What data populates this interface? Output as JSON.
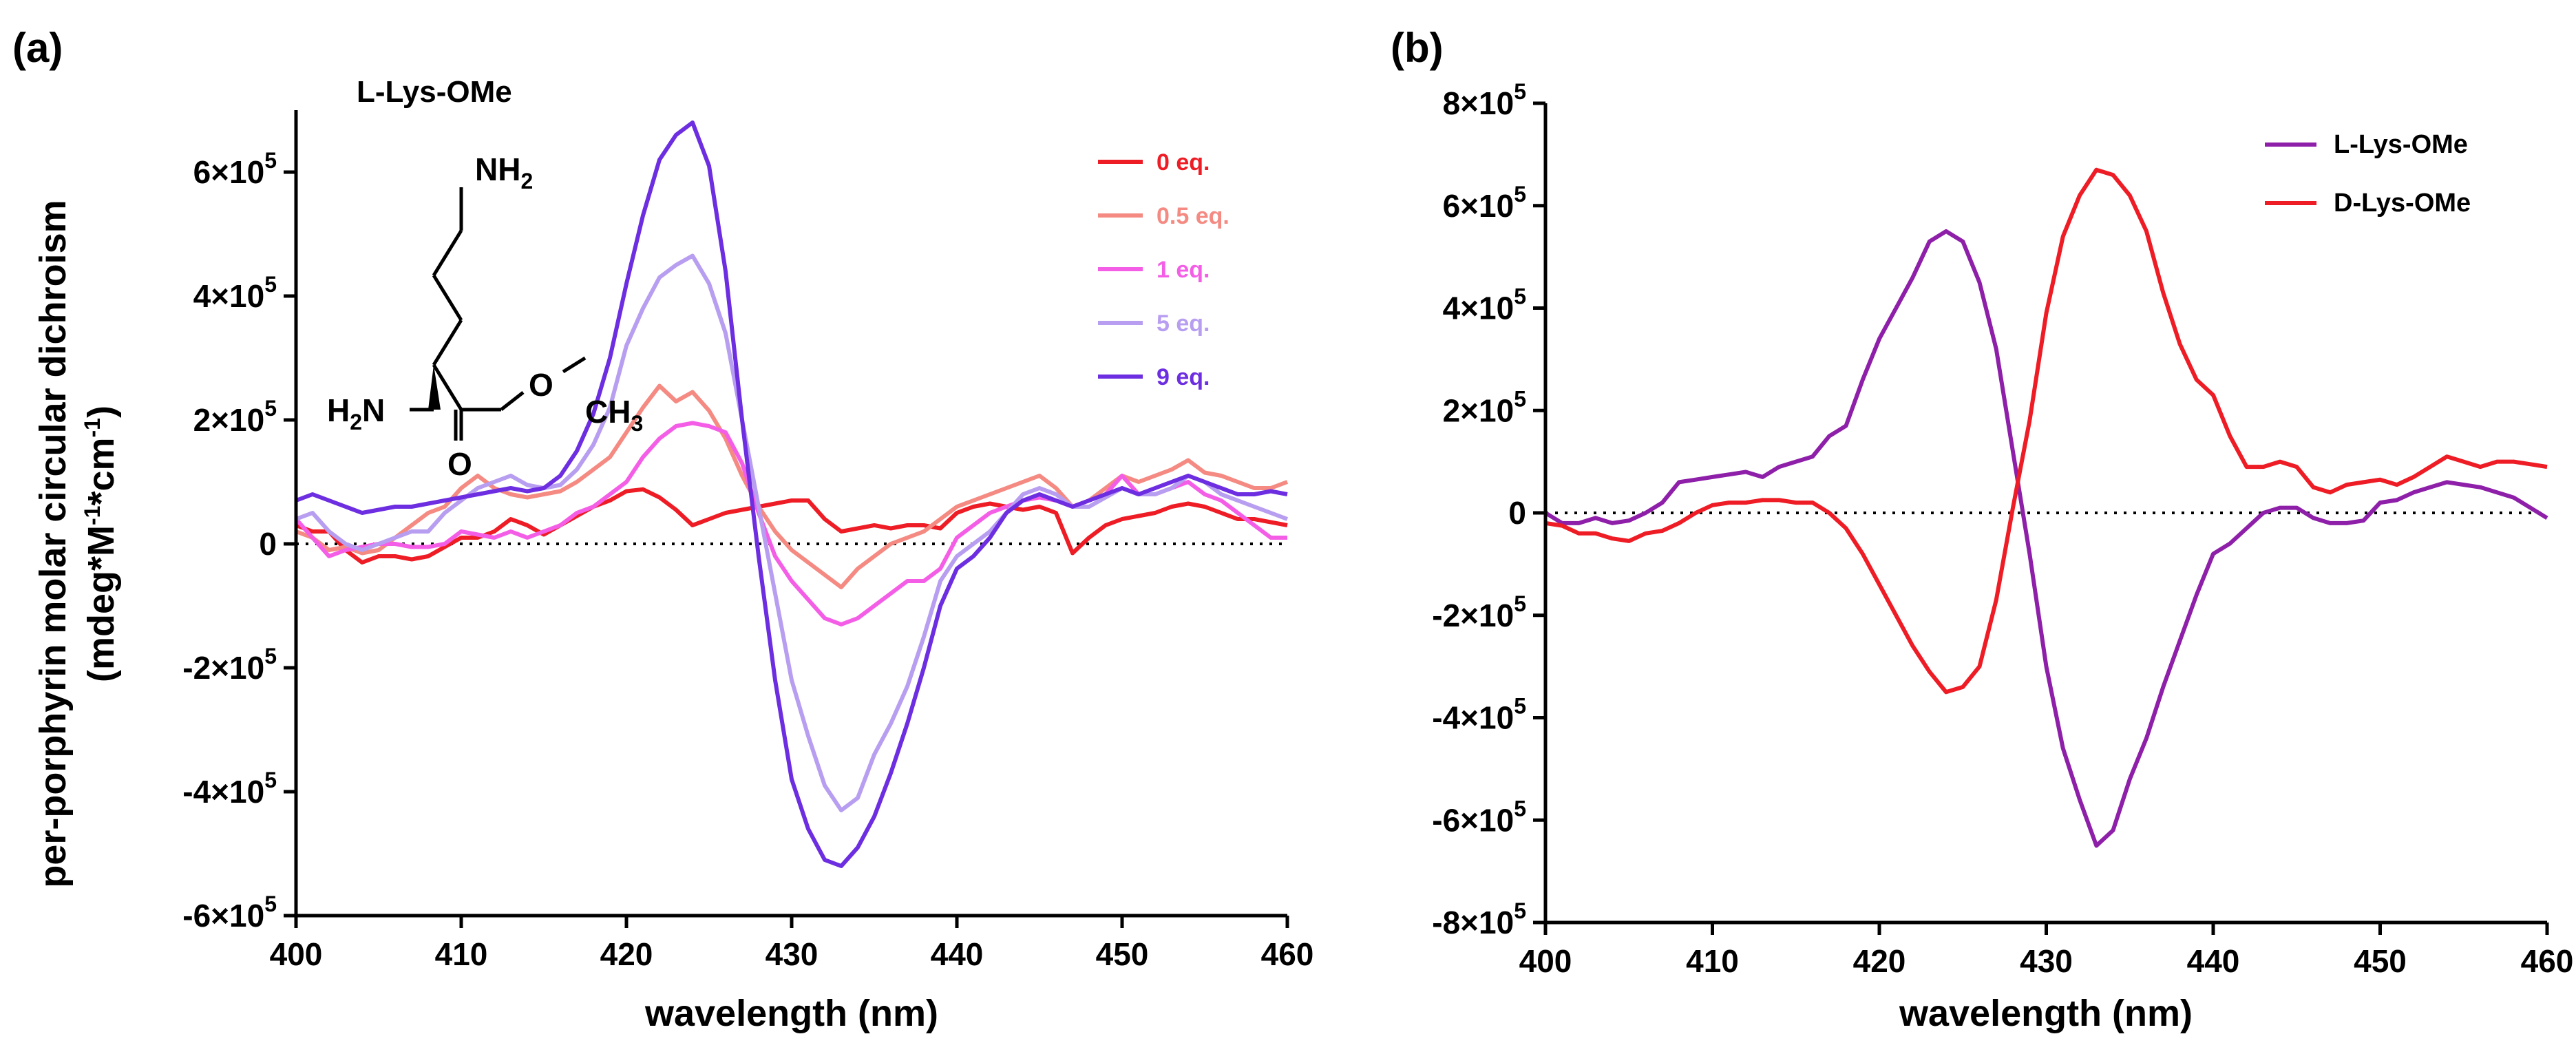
{
  "chart_data": [
    {
      "panel": "(a)",
      "type": "line",
      "title": "",
      "xlabel": "wavelength (nm)",
      "ylabel_line1": "per-porphyrin molar circular dichroism",
      "ylabel_line2": "(mdeg*M-1*cm-1)",
      "xlim": [
        400,
        460
      ],
      "ylim": [
        -600000,
        700000
      ],
      "xticks": [
        400,
        410,
        420,
        430,
        440,
        450,
        460
      ],
      "yticks": [
        -600000,
        -400000,
        -200000,
        0,
        200000,
        400000,
        600000
      ],
      "ytick_labels": [
        "-6×10",
        "-4×10",
        "-2×10",
        "0",
        "2×10",
        "4×10",
        "6×10"
      ],
      "ytick_exponent": "5",
      "zero_line": "dotted",
      "legend_position": "top-right",
      "molecule_label": "L-Lys-OMe",
      "molecule_atoms": [
        "NH",
        "2",
        "H",
        "2",
        "N",
        "O",
        "CH",
        "3",
        "O"
      ],
      "x": [
        400,
        401,
        402,
        403,
        404,
        405,
        406,
        407,
        408,
        409,
        410,
        411,
        412,
        413,
        414,
        415,
        416,
        417,
        418,
        419,
        420,
        421,
        422,
        423,
        424,
        425,
        426,
        427,
        428,
        429,
        430,
        431,
        432,
        433,
        434,
        435,
        436,
        437,
        438,
        439,
        440,
        441,
        442,
        443,
        444,
        445,
        446,
        447,
        448,
        449,
        450,
        451,
        452,
        453,
        454,
        455,
        456,
        457,
        458,
        459,
        460
      ],
      "series": [
        {
          "name": "0 eq.",
          "color": "#ee1c25",
          "values": [
            30000,
            20000,
            20000,
            -10000,
            -30000,
            -20000,
            -20000,
            -25000,
            -20000,
            -5000,
            10000,
            10000,
            20000,
            40000,
            30000,
            15000,
            30000,
            45000,
            60000,
            70000,
            85000,
            88000,
            75000,
            55000,
            30000,
            40000,
            50000,
            55000,
            60000,
            65000,
            70000,
            70000,
            40000,
            20000,
            25000,
            30000,
            25000,
            30000,
            30000,
            25000,
            50000,
            60000,
            65000,
            60000,
            55000,
            60000,
            50000,
            -15000,
            10000,
            30000,
            40000,
            45000,
            50000,
            60000,
            65000,
            60000,
            50000,
            40000,
            40000,
            35000,
            30000
          ]
        },
        {
          "name": "0.5 eq.",
          "color": "#f48a82",
          "values": [
            20000,
            10000,
            -10000,
            -5000,
            -15000,
            -10000,
            10000,
            30000,
            50000,
            60000,
            90000,
            110000,
            90000,
            80000,
            75000,
            80000,
            85000,
            100000,
            120000,
            140000,
            180000,
            220000,
            255000,
            230000,
            245000,
            215000,
            170000,
            110000,
            60000,
            20000,
            -10000,
            -30000,
            -50000,
            -70000,
            -40000,
            -20000,
            0,
            10000,
            20000,
            40000,
            60000,
            70000,
            80000,
            90000,
            100000,
            110000,
            90000,
            60000,
            70000,
            90000,
            110000,
            100000,
            110000,
            120000,
            135000,
            115000,
            110000,
            100000,
            90000,
            90000,
            100000
          ]
        },
        {
          "name": "1 eq.",
          "color": "#f45ee6",
          "values": [
            40000,
            10000,
            -20000,
            -10000,
            -5000,
            0,
            0,
            -5000,
            -5000,
            0,
            20000,
            15000,
            10000,
            20000,
            10000,
            20000,
            30000,
            50000,
            60000,
            80000,
            100000,
            140000,
            170000,
            190000,
            195000,
            190000,
            180000,
            130000,
            50000,
            -20000,
            -60000,
            -90000,
            -120000,
            -130000,
            -120000,
            -100000,
            -80000,
            -60000,
            -60000,
            -40000,
            10000,
            30000,
            50000,
            60000,
            70000,
            75000,
            70000,
            60000,
            70000,
            80000,
            110000,
            80000,
            80000,
            90000,
            100000,
            80000,
            70000,
            50000,
            30000,
            10000,
            10000
          ]
        },
        {
          "name": "5 eq.",
          "color": "#b89ef0",
          "values": [
            40000,
            50000,
            20000,
            0,
            -10000,
            0,
            10000,
            20000,
            20000,
            50000,
            70000,
            90000,
            100000,
            110000,
            95000,
            90000,
            95000,
            120000,
            160000,
            220000,
            320000,
            380000,
            430000,
            450000,
            465000,
            420000,
            340000,
            200000,
            60000,
            -80000,
            -220000,
            -310000,
            -390000,
            -430000,
            -410000,
            -340000,
            -290000,
            -230000,
            -150000,
            -60000,
            -20000,
            0,
            20000,
            50000,
            80000,
            90000,
            80000,
            60000,
            60000,
            75000,
            90000,
            80000,
            80000,
            90000,
            110000,
            100000,
            80000,
            70000,
            60000,
            50000,
            40000
          ]
        },
        {
          "name": "9 eq.",
          "color": "#6c2ee0",
          "values": [
            70000,
            80000,
            70000,
            60000,
            50000,
            55000,
            60000,
            60000,
            65000,
            70000,
            75000,
            80000,
            85000,
            90000,
            85000,
            90000,
            110000,
            150000,
            210000,
            300000,
            420000,
            530000,
            620000,
            660000,
            680000,
            610000,
            440000,
            200000,
            -20000,
            -220000,
            -380000,
            -460000,
            -510000,
            -520000,
            -490000,
            -440000,
            -370000,
            -290000,
            -200000,
            -100000,
            -40000,
            -20000,
            10000,
            50000,
            70000,
            80000,
            70000,
            60000,
            70000,
            80000,
            90000,
            80000,
            90000,
            100000,
            110000,
            100000,
            90000,
            80000,
            80000,
            85000,
            80000
          ]
        }
      ]
    },
    {
      "panel": "(b)",
      "type": "line",
      "title": "",
      "xlabel": "wavelength (nm)",
      "xlim": [
        400,
        460
      ],
      "ylim": [
        -800000,
        800000
      ],
      "xticks": [
        400,
        410,
        420,
        430,
        440,
        450,
        460
      ],
      "yticks": [
        -800000,
        -600000,
        -400000,
        -200000,
        0,
        200000,
        400000,
        600000,
        800000
      ],
      "ytick_labels": [
        "-8×10",
        "-6×10",
        "-4×10",
        "-2×10",
        "0",
        "2×10",
        "4×10",
        "6×10",
        "8×10"
      ],
      "ytick_exponent": "5",
      "zero_line": "dotted",
      "legend_position": "top-right",
      "x": [
        400,
        401,
        402,
        403,
        404,
        405,
        406,
        407,
        408,
        409,
        410,
        411,
        412,
        413,
        414,
        415,
        416,
        417,
        418,
        419,
        420,
        421,
        422,
        423,
        424,
        425,
        426,
        427,
        428,
        429,
        430,
        431,
        432,
        433,
        434,
        435,
        436,
        437,
        438,
        439,
        440,
        441,
        442,
        443,
        444,
        445,
        446,
        447,
        448,
        449,
        450,
        451,
        452,
        453,
        454,
        455,
        456,
        457,
        458,
        459,
        460
      ],
      "series": [
        {
          "name": "L-Lys-OMe",
          "color": "#8e1fa8",
          "values": [
            0,
            -20000,
            -20000,
            -10000,
            -20000,
            -15000,
            0,
            20000,
            60000,
            65000,
            70000,
            75000,
            80000,
            70000,
            90000,
            100000,
            110000,
            150000,
            170000,
            260000,
            340000,
            400000,
            460000,
            530000,
            550000,
            530000,
            450000,
            320000,
            120000,
            -80000,
            -300000,
            -460000,
            -560000,
            -650000,
            -620000,
            -520000,
            -440000,
            -340000,
            -250000,
            -160000,
            -80000,
            -60000,
            -30000,
            0,
            10000,
            10000,
            -10000,
            -20000,
            -20000,
            -15000,
            20000,
            25000,
            40000,
            50000,
            60000,
            55000,
            50000,
            40000,
            30000,
            10000,
            -10000
          ]
        },
        {
          "name": "D-Lys-OMe",
          "color": "#ee1c25",
          "values": [
            -20000,
            -25000,
            -40000,
            -40000,
            -50000,
            -55000,
            -40000,
            -35000,
            -20000,
            0,
            15000,
            20000,
            20000,
            25000,
            25000,
            20000,
            20000,
            0,
            -30000,
            -80000,
            -140000,
            -200000,
            -260000,
            -310000,
            -350000,
            -340000,
            -300000,
            -170000,
            10000,
            180000,
            390000,
            540000,
            620000,
            670000,
            660000,
            620000,
            550000,
            430000,
            330000,
            260000,
            230000,
            150000,
            90000,
            90000,
            100000,
            90000,
            50000,
            40000,
            55000,
            60000,
            65000,
            55000,
            70000,
            90000,
            110000,
            100000,
            90000,
            100000,
            100000,
            95000,
            90000
          ]
        }
      ]
    }
  ]
}
